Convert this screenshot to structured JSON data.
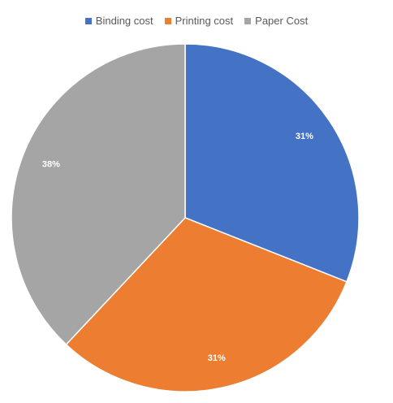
{
  "chart_data": {
    "type": "pie",
    "categories": [
      "Binding cost",
      "Printing cost",
      "Paper Cost"
    ],
    "values": [
      31,
      31,
      38
    ],
    "data_labels": [
      "31%",
      "31%",
      "38%"
    ],
    "colors": [
      "#4472C4",
      "#ED7D31",
      "#A5A5A5"
    ],
    "legend_position": "top"
  }
}
